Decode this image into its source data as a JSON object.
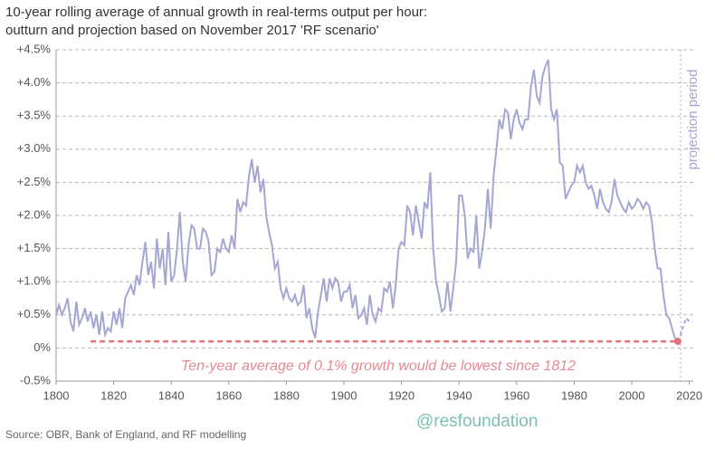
{
  "chart_data": {
    "type": "line",
    "title": [
      "10-year rolling average of annual growth in real-terms output per hour:",
      "outturn and projection based on November 2017 'RF scenario'"
    ],
    "source": "Source: OBR, Bank of England, and RF modelling",
    "watermark": "@resfoundation",
    "annotation": "Ten-year average of 0.1% growth would be lowest since 1812",
    "projection_label": "projection period",
    "projection_start": 2017,
    "grid": true,
    "xlim": [
      1800,
      2022
    ],
    "xticks": [
      1800,
      1820,
      1840,
      1860,
      1880,
      1900,
      1920,
      1940,
      1960,
      1980,
      2000,
      2020
    ],
    "ylim": [
      -0.5,
      4.5
    ],
    "yticks": [
      {
        "value": -0.5,
        "label": "-0.5%"
      },
      {
        "value": 0,
        "label": "0%"
      },
      {
        "value": 0.5,
        "label": "+0.5%"
      },
      {
        "value": 1,
        "label": "+1.0%"
      },
      {
        "value": 1.5,
        "label": "+1.5%"
      },
      {
        "value": 2,
        "label": "+2.0%"
      },
      {
        "value": 2.5,
        "label": "+2.5%"
      },
      {
        "value": 3,
        "label": "+3.0%"
      },
      {
        "value": 3.5,
        "label": "+3.5%"
      },
      {
        "value": 4,
        "label": "+4.0%"
      },
      {
        "value": 4.5,
        "label": "+4.5%"
      }
    ],
    "reference": {
      "value": 0.1,
      "x": [
        1812,
        2016
      ],
      "color": "#e0727c"
    },
    "series": [
      {
        "color": "#a5a6d3",
        "dashed": false,
        "x": [
          1800,
          1801,
          1802,
          1803,
          1804,
          1805,
          1806,
          1807,
          1808,
          1809,
          1810,
          1811,
          1812,
          1813,
          1814,
          1815,
          1816,
          1817,
          1818,
          1819,
          1820,
          1821,
          1822,
          1823,
          1824,
          1825,
          1826,
          1827,
          1828,
          1829,
          1830,
          1831,
          1832,
          1833,
          1834,
          1835,
          1836,
          1837,
          1838,
          1839,
          1840,
          1841,
          1842,
          1843,
          1844,
          1845,
          1846,
          1847,
          1848,
          1849,
          1850,
          1851,
          1852,
          1853,
          1854,
          1855,
          1856,
          1857,
          1858,
          1859,
          1860,
          1861,
          1862,
          1863,
          1864,
          1865,
          1866,
          1867,
          1868,
          1869,
          1870,
          1871,
          1872,
          1873,
          1874,
          1875,
          1876,
          1877,
          1878,
          1879,
          1880,
          1881,
          1882,
          1883,
          1884,
          1885,
          1886,
          1887,
          1888,
          1889,
          1890,
          1891,
          1892,
          1893,
          1894,
          1895,
          1896,
          1897,
          1898,
          1899,
          1900,
          1901,
          1902,
          1903,
          1904,
          1905,
          1906,
          1907,
          1908,
          1909,
          1910,
          1911,
          1912,
          1913,
          1914,
          1915,
          1916,
          1917,
          1918,
          1919,
          1920,
          1921,
          1922,
          1923,
          1924,
          1925,
          1926,
          1927,
          1928,
          1929,
          1930,
          1931,
          1932,
          1933,
          1934,
          1935,
          1936,
          1937,
          1938,
          1939,
          1940,
          1941,
          1942,
          1943,
          1944,
          1945,
          1946,
          1947,
          1948,
          1949,
          1950,
          1951,
          1952,
          1953,
          1954,
          1955,
          1956,
          1957,
          1958,
          1959,
          1960,
          1961,
          1962,
          1963,
          1964,
          1965,
          1966,
          1967,
          1968,
          1969,
          1970,
          1971,
          1972,
          1973,
          1974,
          1975,
          1976,
          1977,
          1978,
          1979,
          1980,
          1981,
          1982,
          1983,
          1984,
          1985,
          1986,
          1987,
          1988,
          1989,
          1990,
          1991,
          1992,
          1993,
          1994,
          1995,
          1996,
          1997,
          1998,
          1999,
          2000,
          2001,
          2002,
          2003,
          2004,
          2005,
          2006,
          2007,
          2008,
          2009,
          2010,
          2011,
          2012,
          2013,
          2014,
          2015,
          2016
        ],
        "values": [
          0.5,
          0.65,
          0.5,
          0.6,
          0.75,
          0.4,
          0.25,
          0.7,
          0.35,
          0.45,
          0.6,
          0.4,
          0.55,
          0.3,
          0.5,
          0.2,
          0.55,
          0.2,
          0.3,
          0.25,
          0.55,
          0.35,
          0.6,
          0.3,
          0.75,
          0.85,
          0.95,
          0.8,
          1.1,
          0.95,
          1.3,
          1.6,
          1.1,
          1.3,
          0.9,
          1.65,
          1.2,
          1.5,
          0.95,
          1.75,
          1.0,
          1.1,
          1.5,
          2.05,
          1.3,
          1.0,
          1.55,
          1.85,
          1.8,
          1.5,
          1.5,
          1.8,
          1.75,
          1.6,
          1.1,
          1.15,
          1.5,
          1.45,
          1.65,
          1.5,
          1.45,
          1.7,
          1.5,
          2.25,
          2.05,
          2.2,
          2.15,
          2.6,
          2.85,
          2.5,
          2.75,
          2.35,
          2.55,
          2.0,
          1.75,
          1.55,
          1.2,
          1.3,
          0.9,
          0.75,
          0.9,
          0.75,
          0.7,
          0.8,
          0.65,
          0.7,
          0.95,
          0.45,
          0.6,
          0.3,
          0.15,
          0.55,
          0.8,
          1.05,
          0.7,
          1.05,
          0.9,
          1.05,
          1.0,
          0.7,
          0.85,
          0.85,
          0.95,
          0.6,
          0.8,
          0.45,
          0.5,
          0.6,
          0.35,
          0.8,
          0.5,
          0.4,
          0.6,
          0.55,
          0.9,
          0.85,
          1.0,
          0.6,
          0.95,
          1.5,
          1.6,
          1.55,
          2.15,
          2.05,
          1.7,
          2.15,
          1.9,
          1.65,
          2.2,
          2.1,
          2.65,
          1.5,
          1.0,
          0.8,
          0.55,
          0.6,
          1.0,
          0.55,
          0.9,
          1.3,
          2.3,
          2.3,
          2.0,
          1.35,
          1.5,
          1.45,
          2.0,
          1.2,
          1.45,
          1.8,
          2.4,
          1.8,
          2.6,
          3.0,
          3.45,
          3.3,
          3.6,
          3.55,
          3.15,
          3.45,
          3.6,
          3.4,
          3.3,
          3.45,
          3.45,
          3.95,
          4.2,
          3.8,
          3.7,
          4.1,
          4.25,
          4.35,
          3.6,
          3.45,
          3.6,
          2.8,
          2.75,
          2.25,
          2.35,
          2.45,
          2.5,
          2.75,
          2.65,
          2.75,
          2.5,
          2.4,
          2.45,
          2.3,
          2.1,
          2.4,
          2.2,
          2.1,
          2.05,
          2.2,
          2.55,
          2.3,
          2.2,
          2.1,
          2.05,
          2.2,
          2.1,
          2.15,
          2.25,
          2.2,
          2.1,
          2.2,
          2.15,
          1.9,
          1.5,
          1.2,
          1.2,
          0.8,
          0.5,
          0.45,
          0.3,
          0.15,
          0.1
        ]
      },
      {
        "color": "#a5a6d3",
        "dashed": true,
        "x": [
          2016,
          2017,
          2018,
          2019,
          2020,
          2021
        ],
        "values": [
          0.1,
          0.2,
          0.35,
          0.45,
          0.4,
          0.4
        ]
      }
    ]
  }
}
